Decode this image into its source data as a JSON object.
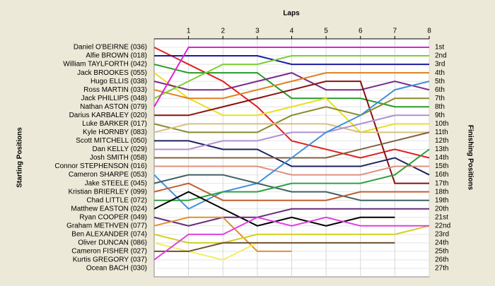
{
  "chart_data": {
    "type": "line",
    "title": "Laps",
    "y_label": "Starting Positions",
    "y2_label": "Finishing Positions",
    "x": [
      0,
      1,
      2,
      3,
      4,
      5,
      6,
      7,
      8
    ],
    "xlim": [
      0,
      8
    ],
    "xticks": [
      1,
      2,
      3,
      4,
      5,
      6,
      7,
      8
    ],
    "ylim": [
      1,
      27
    ],
    "y_inverted": true,
    "grid": true,
    "finish_labels": [
      "1st",
      "2nd",
      "3rd",
      "4th",
      "5th",
      "6th",
      "7th",
      "8th",
      "9th",
      "10th",
      "11th",
      "12th",
      "13th",
      "14th",
      "15th",
      "16th",
      "17th",
      "18th",
      "19th",
      "20th",
      "21st",
      "22nd",
      "23rd",
      "24th",
      "25th",
      "26th",
      "27th"
    ],
    "series": [
      {
        "name": "Daniel O'BEIRNE (036)",
        "color": "#e02020",
        "values": [
          1,
          3,
          5,
          8,
          12,
          13,
          14,
          13,
          14
        ]
      },
      {
        "name": "Alfie BROWN (018)",
        "color": "#1a1aa0",
        "values": [
          2,
          2,
          2,
          2,
          3,
          3,
          3,
          3,
          3
        ]
      },
      {
        "name": "William TAYLFORTH (042)",
        "color": "#2a9a2a",
        "values": [
          3,
          4,
          4,
          4,
          7,
          7,
          7,
          8,
          8
        ]
      },
      {
        "name": "Jack BROOKES (055)",
        "color": "#e8e020",
        "values": [
          4,
          7,
          9,
          9,
          8,
          7,
          11,
          10,
          10
        ]
      },
      {
        "name": "Hugo ELLIS (038)",
        "color": "#7a2a8a",
        "values": [
          5,
          6,
          6,
          5,
          4,
          6,
          6,
          5,
          6
        ]
      },
      {
        "name": "Ross MARTIN (033)",
        "color": "#e08020",
        "values": [
          6,
          7,
          7,
          6,
          5,
          4,
          4,
          4,
          4
        ]
      },
      {
        "name": "Jack PHILLIPS (048)",
        "color": "#7ad030",
        "values": [
          7,
          5,
          3,
          3,
          2,
          2,
          2,
          2,
          2
        ]
      },
      {
        "name": "Nathan ASTON (079)",
        "color": "#e020d0",
        "values": [
          8,
          1,
          1,
          1,
          1,
          1,
          1,
          1,
          1
        ]
      },
      {
        "name": "Darius KARBALEY (020)",
        "color": "#8a1010",
        "values": [
          9,
          9,
          8,
          7,
          6,
          5,
          5,
          17,
          17
        ]
      },
      {
        "name": "Luke BARKER (017)",
        "color": "#8a8a2a",
        "values": [
          10,
          11,
          11,
          11,
          9,
          8,
          9,
          7,
          7
        ]
      },
      {
        "name": "Kyle HORNBY (083)",
        "color": "#d8c080",
        "values": [
          11,
          10,
          10,
          10,
          10,
          10,
          11,
          11,
          11
        ]
      },
      {
        "name": "Scott MITCHELL (050)",
        "color": "#202060",
        "values": [
          12,
          12,
          13,
          13,
          15,
          15,
          15,
          14,
          16
        ]
      },
      {
        "name": "Dan KELLY (029)",
        "color": "#b090d0",
        "values": [
          13,
          13,
          12,
          12,
          11,
          11,
          10,
          9,
          9
        ]
      },
      {
        "name": "Josh SMITH (058)",
        "color": "#806040",
        "values": [
          14,
          14,
          14,
          14,
          14,
          14,
          13,
          12,
          11
        ]
      },
      {
        "name": "Connor STEPHENSON (016)",
        "color": "#e09080",
        "values": [
          15,
          15,
          15,
          15,
          16,
          16,
          16,
          15,
          15
        ]
      },
      {
        "name": "Cameron SHARPE (053)",
        "color": "#4090d8",
        "values": [
          16,
          20,
          18,
          17,
          14,
          11,
          9,
          6,
          5
        ]
      },
      {
        "name": "Jake STEELE (045)",
        "color": "#406060",
        "values": [
          17,
          16,
          16,
          17,
          18,
          18,
          19,
          19,
          19
        ]
      },
      {
        "name": "Kristian BRIERLEY (099)",
        "color": "#c06030",
        "values": [
          18,
          17,
          19,
          19,
          19,
          19,
          18,
          18,
          18
        ]
      },
      {
        "name": "Chad LITTLE (072)",
        "color": "#30a040",
        "values": [
          19,
          19,
          18,
          18,
          17,
          17,
          17,
          16,
          13
        ]
      },
      {
        "name": "Matthew EASTON (024)",
        "color": "#000000",
        "values": [
          20,
          18,
          20,
          22,
          21,
          22,
          21,
          21,
          null
        ]
      },
      {
        "name": "Ryan COOPER (049)",
        "color": "#6a2a7a",
        "values": [
          21,
          22,
          21,
          21,
          20,
          20,
          20,
          20,
          20
        ]
      },
      {
        "name": "Graham METHVEN (077)",
        "color": "#e09030",
        "values": [
          22,
          21,
          21,
          25,
          25,
          null,
          null,
          null,
          null
        ]
      },
      {
        "name": "Ben ALEXANDER (074)",
        "color": "#d0d020",
        "values": [
          23,
          24,
          24,
          23,
          23,
          23,
          23,
          23,
          22
        ]
      },
      {
        "name": "Oliver DUNCAN (086)",
        "color": "#f0f060",
        "values": [
          24,
          25,
          26,
          24,
          24,
          24,
          24,
          24,
          null
        ]
      },
      {
        "name": "Cameron FISHER (027)",
        "color": "#705030",
        "values": [
          25,
          25,
          24,
          24,
          24,
          24,
          24,
          24,
          null
        ]
      },
      {
        "name": "Kurtis GREGORY (037)",
        "color": "#e040e0",
        "values": [
          26,
          23,
          23,
          21,
          22,
          21,
          22,
          22,
          22
        ]
      },
      {
        "name": "Ocean BACH (030)",
        "color": "#808080",
        "values": [
          27,
          null,
          null,
          null,
          null,
          null,
          null,
          null,
          null
        ]
      }
    ]
  }
}
